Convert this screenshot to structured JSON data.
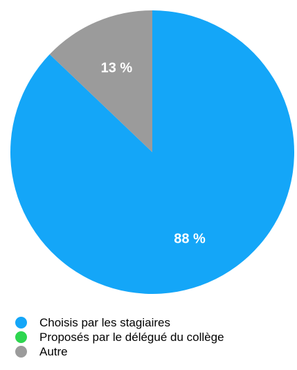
{
  "chart_data": {
    "type": "pie",
    "title": "",
    "slices": [
      {
        "label": "Choisis par les stagiaires",
        "value": 88,
        "value_label": "88 %",
        "color": "#14a6f8"
      },
      {
        "label": "Proposés par le délégué du collège",
        "value": 0,
        "value_label": "",
        "color": "#2dd64f"
      },
      {
        "label": "Autre",
        "value": 13,
        "value_label": "13 %",
        "color": "#9b9b9b"
      }
    ],
    "start_angle": "12 o'clock",
    "direction": "clockwise",
    "legend_position": "bottom-left"
  }
}
